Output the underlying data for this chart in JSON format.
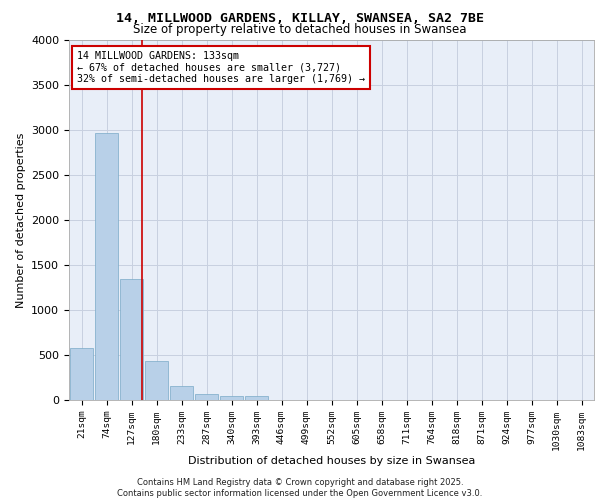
{
  "title": "14, MILLWOOD GARDENS, KILLAY, SWANSEA, SA2 7BE",
  "subtitle": "Size of property relative to detached houses in Swansea",
  "xlabel": "Distribution of detached houses by size in Swansea",
  "ylabel": "Number of detached properties",
  "categories": [
    "21sqm",
    "74sqm",
    "127sqm",
    "180sqm",
    "233sqm",
    "287sqm",
    "340sqm",
    "393sqm",
    "446sqm",
    "499sqm",
    "552sqm",
    "605sqm",
    "658sqm",
    "711sqm",
    "764sqm",
    "818sqm",
    "871sqm",
    "924sqm",
    "977sqm",
    "1030sqm",
    "1083sqm"
  ],
  "values": [
    580,
    2970,
    1340,
    430,
    160,
    70,
    40,
    40,
    0,
    0,
    0,
    0,
    0,
    0,
    0,
    0,
    0,
    0,
    0,
    0,
    0
  ],
  "bar_color": "#b8d0e8",
  "bar_edge_color": "#7aaac8",
  "bg_color": "#e8eef8",
  "grid_color": "#c8d0e0",
  "annotation_text_line1": "14 MILLWOOD GARDENS: 133sqm",
  "annotation_text_line2": "← 67% of detached houses are smaller (3,727)",
  "annotation_text_line3": "32% of semi-detached houses are larger (1,769) →",
  "annotation_box_color": "#cc0000",
  "ylim": [
    0,
    4000
  ],
  "yticks": [
    0,
    500,
    1000,
    1500,
    2000,
    2500,
    3000,
    3500,
    4000
  ],
  "red_line_x": 2.42,
  "footer_line1": "Contains HM Land Registry data © Crown copyright and database right 2025.",
  "footer_line2": "Contains public sector information licensed under the Open Government Licence v3.0."
}
